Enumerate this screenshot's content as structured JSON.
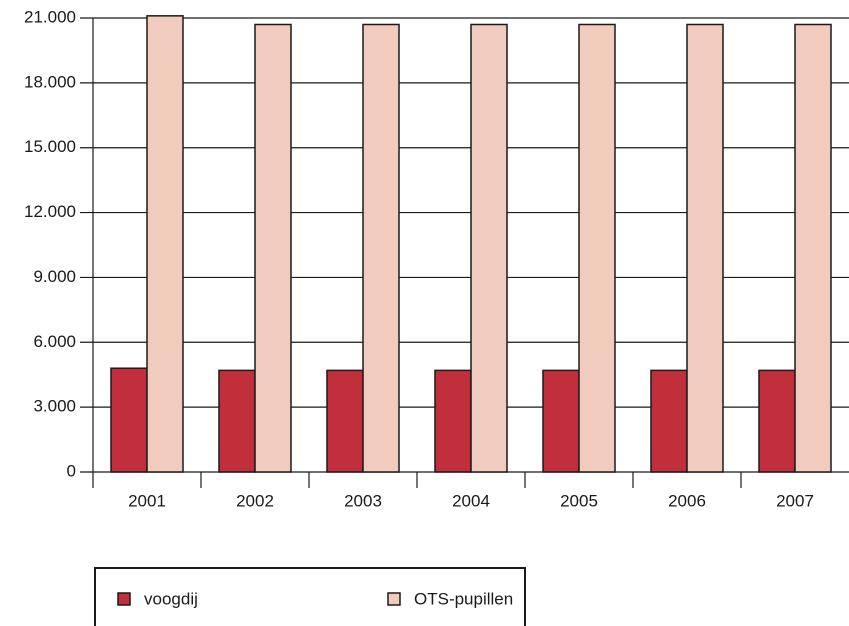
{
  "chart_data": {
    "type": "bar",
    "categories": [
      "2001",
      "2002",
      "2003",
      "2004",
      "2005",
      "2006",
      "2007"
    ],
    "series": [
      {
        "name": "voogdij",
        "color": "#c12f3c",
        "values": [
          4800,
          4700,
          4700,
          4700,
          4700,
          4700,
          4700
        ]
      },
      {
        "name": "OTS-pupillen",
        "color": "#f2cbbf",
        "values": [
          21100,
          20700,
          20700,
          20700,
          20700,
          20700,
          20700
        ]
      }
    ],
    "ylim": [
      0,
      21000
    ],
    "yticks": [
      0,
      {
        "value": 3000,
        "label": "3.000"
      },
      {
        "value": 6000,
        "label": "6.000"
      },
      {
        "value": 9000,
        "label": "9.000"
      },
      {
        "value": 12000,
        "label": "12.000"
      },
      {
        "value": 15000,
        "label": "15.000"
      },
      {
        "value": 18000,
        "label": "18.000"
      },
      {
        "value": 21000,
        "label": "21.000"
      }
    ],
    "grid": true
  }
}
